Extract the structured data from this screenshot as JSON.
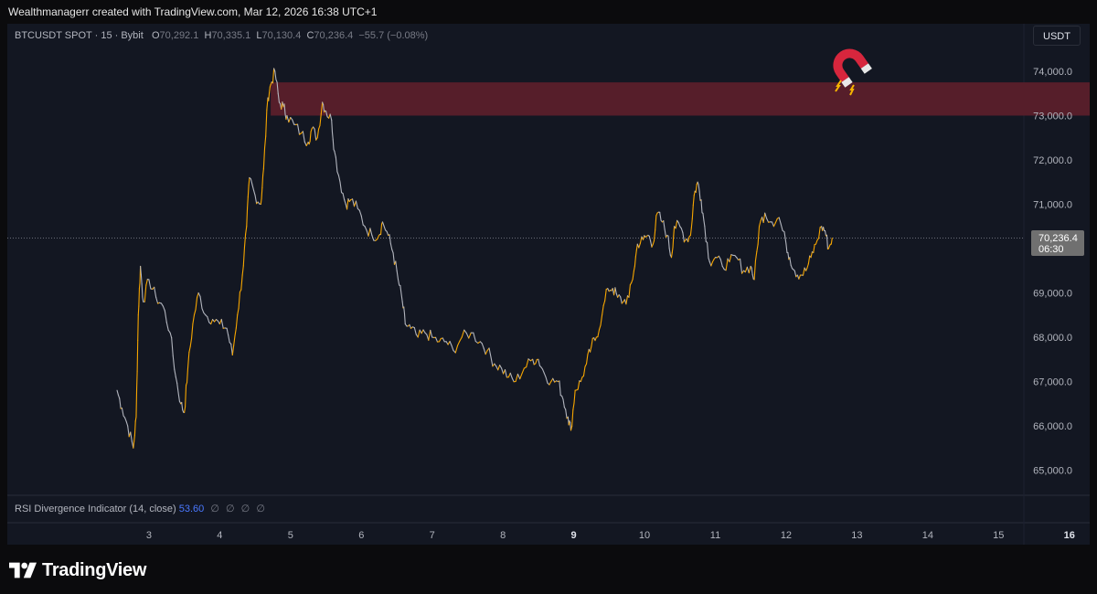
{
  "attribution": "Wealthmanagerr created with TradingView.com, Mar 12, 2026 16:38 UTC+1",
  "legend": {
    "symbol": "BTCUSDT SPOT · 15 · Bybit",
    "open_label": "O",
    "open": "70,292.1",
    "high_label": "H",
    "high": "70,335.1",
    "low_label": "L",
    "low": "70,130.4",
    "close_label": "C",
    "close": "70,236.4",
    "change": "−55.7 (−0.08%)"
  },
  "currency_button": "USDT",
  "rsi": {
    "label": "RSI Divergence Indicator (14, close)",
    "value": "53.60",
    "placeholders": [
      "∅",
      "∅",
      "∅",
      "∅"
    ]
  },
  "price_tag": {
    "price": "70,236.4",
    "countdown": "06:30"
  },
  "brand": "TradingView",
  "colors": {
    "candle_up": "#f7a600",
    "candle_down": "#b2b5be",
    "zone_fill": "#5a1f2b",
    "background": "#131722",
    "rsi_value": "#4a78ff"
  },
  "icons": {
    "magnet": "magnet-icon"
  },
  "chart_data": {
    "type": "line",
    "series": [
      {
        "values": [
          [
            2.55,
            66800
          ],
          [
            2.62,
            66400
          ],
          [
            2.7,
            66000
          ],
          [
            2.78,
            65500
          ],
          [
            2.82,
            66200
          ],
          [
            2.85,
            68500
          ],
          [
            2.88,
            69600
          ],
          [
            2.92,
            68800
          ],
          [
            3.0,
            69300
          ],
          [
            3.1,
            68900
          ],
          [
            3.2,
            68700
          ],
          [
            3.3,
            68100
          ],
          [
            3.38,
            67100
          ],
          [
            3.45,
            66500
          ],
          [
            3.5,
            66300
          ],
          [
            3.55,
            67300
          ],
          [
            3.62,
            68300
          ],
          [
            3.7,
            69000
          ],
          [
            3.8,
            68500
          ],
          [
            3.9,
            68400
          ],
          [
            4.0,
            68300
          ],
          [
            4.1,
            68200
          ],
          [
            4.18,
            67600
          ],
          [
            4.25,
            68500
          ],
          [
            4.32,
            69400
          ],
          [
            4.38,
            70500
          ],
          [
            4.42,
            71600
          ],
          [
            4.5,
            71200
          ],
          [
            4.58,
            71000
          ],
          [
            4.62,
            71800
          ],
          [
            4.68,
            73400
          ],
          [
            4.72,
            73700
          ],
          [
            4.78,
            74000
          ],
          [
            4.84,
            73300
          ],
          [
            4.9,
            73200
          ],
          [
            4.95,
            73000
          ],
          [
            5.05,
            72800
          ],
          [
            5.15,
            72600
          ],
          [
            5.25,
            72400
          ],
          [
            5.3,
            72700
          ],
          [
            5.38,
            72500
          ],
          [
            5.45,
            73300
          ],
          [
            5.5,
            73100
          ],
          [
            5.58,
            72900
          ],
          [
            5.62,
            72200
          ],
          [
            5.7,
            71500
          ],
          [
            5.78,
            71000
          ],
          [
            5.85,
            71100
          ],
          [
            5.95,
            70900
          ],
          [
            6.05,
            70500
          ],
          [
            6.15,
            70300
          ],
          [
            6.25,
            70300
          ],
          [
            6.3,
            70600
          ],
          [
            6.38,
            70300
          ],
          [
            6.45,
            69900
          ],
          [
            6.52,
            69300
          ],
          [
            6.58,
            68800
          ],
          [
            6.62,
            68300
          ],
          [
            6.7,
            68200
          ],
          [
            6.8,
            68000
          ],
          [
            6.9,
            68100
          ],
          [
            7.0,
            68000
          ],
          [
            7.1,
            67900
          ],
          [
            7.2,
            67900
          ],
          [
            7.3,
            67700
          ],
          [
            7.42,
            68000
          ],
          [
            7.55,
            68100
          ],
          [
            7.68,
            67900
          ],
          [
            7.78,
            67700
          ],
          [
            7.88,
            67400
          ],
          [
            7.98,
            67300
          ],
          [
            8.08,
            67100
          ],
          [
            8.18,
            67000
          ],
          [
            8.3,
            67300
          ],
          [
            8.42,
            67500
          ],
          [
            8.5,
            67500
          ],
          [
            8.58,
            67200
          ],
          [
            8.68,
            67000
          ],
          [
            8.78,
            67000
          ],
          [
            8.85,
            66600
          ],
          [
            8.92,
            66200
          ],
          [
            8.96,
            65900
          ],
          [
            9.02,
            66800
          ],
          [
            9.1,
            67000
          ],
          [
            9.18,
            67400
          ],
          [
            9.25,
            67800
          ],
          [
            9.32,
            68000
          ],
          [
            9.4,
            68500
          ],
          [
            9.48,
            69100
          ],
          [
            9.55,
            69100
          ],
          [
            9.62,
            68900
          ],
          [
            9.7,
            68800
          ],
          [
            9.78,
            68900
          ],
          [
            9.85,
            69500
          ],
          [
            9.9,
            70100
          ],
          [
            9.98,
            70200
          ],
          [
            10.05,
            70300
          ],
          [
            10.12,
            70100
          ],
          [
            10.18,
            70800
          ],
          [
            10.25,
            70600
          ],
          [
            10.32,
            70300
          ],
          [
            10.38,
            69800
          ],
          [
            10.42,
            70500
          ],
          [
            10.5,
            70500
          ],
          [
            10.58,
            70200
          ],
          [
            10.65,
            70300
          ],
          [
            10.7,
            71200
          ],
          [
            10.75,
            71500
          ],
          [
            10.8,
            71100
          ],
          [
            10.85,
            70500
          ],
          [
            10.92,
            69700
          ],
          [
            11.0,
            69800
          ],
          [
            11.1,
            69600
          ],
          [
            11.2,
            69700
          ],
          [
            11.3,
            69800
          ],
          [
            11.4,
            69500
          ],
          [
            11.5,
            69600
          ],
          [
            11.55,
            69300
          ],
          [
            11.62,
            70500
          ],
          [
            11.7,
            70800
          ],
          [
            11.8,
            70600
          ],
          [
            11.9,
            70700
          ],
          [
            12.0,
            70100
          ],
          [
            12.05,
            69800
          ],
          [
            12.12,
            69500
          ],
          [
            12.2,
            69400
          ],
          [
            12.28,
            69500
          ],
          [
            12.35,
            69800
          ],
          [
            12.42,
            70100
          ],
          [
            12.5,
            70500
          ],
          [
            12.55,
            70400
          ],
          [
            12.6,
            70000
          ],
          [
            12.65,
            70236.4
          ]
        ]
      }
    ],
    "x_ticks": [
      {
        "label": "3",
        "value": 3
      },
      {
        "label": "4",
        "value": 4
      },
      {
        "label": "5",
        "value": 5
      },
      {
        "label": "6",
        "value": 6
      },
      {
        "label": "7",
        "value": 7
      },
      {
        "label": "8",
        "value": 8
      },
      {
        "label": "9",
        "value": 9,
        "bold": true
      },
      {
        "label": "10",
        "value": 10
      },
      {
        "label": "11",
        "value": 11
      },
      {
        "label": "12",
        "value": 12
      },
      {
        "label": "13",
        "value": 13
      },
      {
        "label": "14",
        "value": 14
      },
      {
        "label": "15",
        "value": 15
      },
      {
        "label": "16",
        "value": 16,
        "bold": true
      }
    ],
    "y_ticks": [
      {
        "label": "74,000.0",
        "value": 74000
      },
      {
        "label": "73,000.0",
        "value": 73000
      },
      {
        "label": "72,000.0",
        "value": 72000
      },
      {
        "label": "71,000.0",
        "value": 71000
      },
      {
        "label": "69,000.0",
        "value": 69000
      },
      {
        "label": "68,000.0",
        "value": 68000
      },
      {
        "label": "67,000.0",
        "value": 67000
      },
      {
        "label": "66,000.0",
        "value": 66000
      },
      {
        "label": "65,000.0",
        "value": 65000
      }
    ],
    "last_price": 70236.4,
    "resistance_zone": [
      73000,
      73750,
      4.72,
      16.55
    ],
    "xlim": [
      2.55,
      16.55
    ],
    "ylim": [
      64700,
      74950
    ],
    "grid": false,
    "legend": "top-left"
  }
}
